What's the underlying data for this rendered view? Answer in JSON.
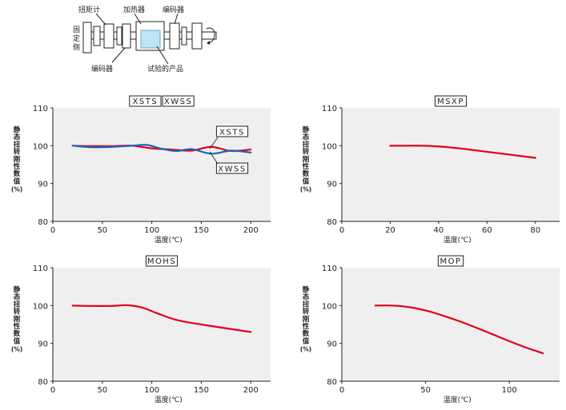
{
  "diagram": {
    "labels": {
      "torque_meter": "扭矩计",
      "heater": "加热器",
      "encoder_top": "编码器",
      "fixed_side": "固定侧",
      "encoder_bottom": "编码器",
      "test_product": "试验的产品"
    }
  },
  "chart_data": [
    {
      "type": "line",
      "title": "XSTS XWSS",
      "title_boxes": [
        "XSTS",
        "XWSS"
      ],
      "xlabel": "温度(℃)",
      "ylabel": "静态扭转刚性数值(%)",
      "xlim": [
        0,
        220
      ],
      "ylim": [
        80,
        110
      ],
      "xticks": [
        0,
        50,
        100,
        150,
        200
      ],
      "yticks": [
        80,
        90,
        100,
        110
      ],
      "grid": false,
      "series": [
        {
          "name": "XSTS",
          "color": "#e0001b",
          "points": [
            [
              20,
              100
            ],
            [
              40,
              99.9
            ],
            [
              60,
              99.9
            ],
            [
              80,
              100
            ],
            [
              100,
              99.3
            ],
            [
              120,
              99
            ],
            [
              140,
              98.7
            ],
            [
              160,
              99.7
            ],
            [
              180,
              98.6
            ],
            [
              200,
              99
            ]
          ]
        },
        {
          "name": "XWSS",
          "color": "#1f63b5",
          "points": [
            [
              20,
              100
            ],
            [
              40,
              99.6
            ],
            [
              60,
              99.7
            ],
            [
              80,
              100
            ],
            [
              95,
              100.2
            ],
            [
              110,
              99.2
            ],
            [
              125,
              98.6
            ],
            [
              140,
              99.1
            ],
            [
              160,
              97.9
            ],
            [
              180,
              98.7
            ],
            [
              200,
              98.2
            ]
          ]
        }
      ],
      "annotations": [
        {
          "text": "XSTS",
          "series": "XSTS"
        },
        {
          "text": "XWSS",
          "series": "XWSS"
        }
      ]
    },
    {
      "type": "line",
      "title": "MSXP",
      "title_boxes": [
        "MSXP"
      ],
      "xlabel": "温度(℃)",
      "ylabel": "静态扭转刚性数值(%)",
      "xlim": [
        0,
        90
      ],
      "ylim": [
        80,
        110
      ],
      "xticks": [
        0,
        20,
        40,
        60,
        80
      ],
      "yticks": [
        80,
        90,
        100,
        110
      ],
      "grid": false,
      "series": [
        {
          "name": "MSXP",
          "color": "#e0001b",
          "points": [
            [
              20,
              100
            ],
            [
              25,
              100
            ],
            [
              33,
              100
            ],
            [
              40,
              99.8
            ],
            [
              50,
              99.2
            ],
            [
              60,
              98.4
            ],
            [
              70,
              97.6
            ],
            [
              80,
              96.8
            ]
          ]
        }
      ]
    },
    {
      "type": "line",
      "title": "MOHS",
      "title_boxes": [
        "MOHS"
      ],
      "xlabel": "温度(℃)",
      "ylabel": "静态扭转刚性数值(%)",
      "xlim": [
        0,
        220
      ],
      "ylim": [
        80,
        110
      ],
      "xticks": [
        0,
        50,
        100,
        150,
        200
      ],
      "yticks": [
        80,
        90,
        100,
        110
      ],
      "grid": false,
      "series": [
        {
          "name": "MOHS",
          "color": "#e0001b",
          "points": [
            [
              20,
              100
            ],
            [
              40,
              99.9
            ],
            [
              60,
              99.9
            ],
            [
              75,
              100.1
            ],
            [
              90,
              99.5
            ],
            [
              105,
              98
            ],
            [
              125,
              96.2
            ],
            [
              150,
              95
            ],
            [
              175,
              94
            ],
            [
              200,
              93
            ]
          ]
        }
      ]
    },
    {
      "type": "line",
      "title": "MOP",
      "title_boxes": [
        "MOP"
      ],
      "xlabel": "温度(℃)",
      "ylabel": "静态扭转刚性数值(%)",
      "xlim": [
        0,
        130
      ],
      "ylim": [
        80,
        110
      ],
      "xticks": [
        0,
        50,
        100
      ],
      "yticks": [
        80,
        90,
        100,
        110
      ],
      "grid": false,
      "series": [
        {
          "name": "MOP",
          "color": "#e0001b",
          "points": [
            [
              20,
              100
            ],
            [
              30,
              100
            ],
            [
              40,
              99.6
            ],
            [
              50,
              98.7
            ],
            [
              60,
              97.4
            ],
            [
              70,
              95.9
            ],
            [
              80,
              94.2
            ],
            [
              90,
              92.4
            ],
            [
              100,
              90.6
            ],
            [
              110,
              88.9
            ],
            [
              120,
              87.4
            ]
          ]
        }
      ]
    }
  ]
}
